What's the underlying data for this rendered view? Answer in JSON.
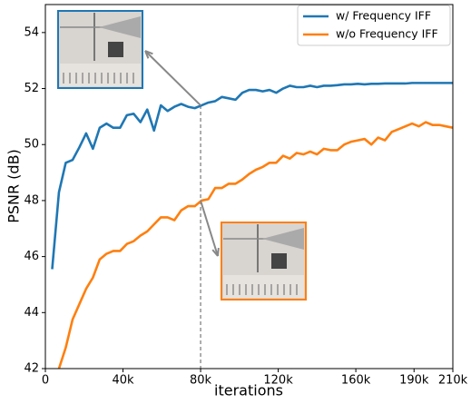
{
  "chart_data": {
    "type": "line",
    "xlabel": "iterations",
    "ylabel": "PSNR (dB)",
    "x": [
      3500,
      7000,
      10500,
      14000,
      17500,
      21000,
      24500,
      28000,
      31500,
      35000,
      38500,
      42000,
      45500,
      49000,
      52500,
      56000,
      59500,
      63000,
      66500,
      70000,
      73500,
      77000,
      80500,
      84000,
      87500,
      91000,
      94500,
      98000,
      101500,
      105000,
      108500,
      112000,
      115500,
      119000,
      122500,
      126000,
      129500,
      133000,
      136500,
      140000,
      143500,
      147000,
      150500,
      154000,
      157500,
      161000,
      164500,
      168000,
      171500,
      175000,
      178500,
      182000,
      185500,
      189000,
      192500,
      196000,
      199500,
      203000,
      206500,
      210000
    ],
    "series": [
      {
        "name": "w/ Frequency IFF",
        "color": "#1f77b4",
        "values": [
          45.55,
          48.3,
          49.35,
          49.45,
          49.9,
          50.4,
          49.85,
          50.6,
          50.75,
          50.6,
          50.6,
          51.05,
          51.1,
          50.8,
          51.25,
          50.5,
          51.4,
          51.2,
          51.35,
          51.45,
          51.35,
          51.3,
          51.4,
          51.5,
          51.55,
          51.7,
          51.65,
          51.6,
          51.85,
          51.95,
          51.95,
          51.9,
          51.95,
          51.85,
          52.0,
          52.1,
          52.05,
          52.05,
          52.1,
          52.05,
          52.1,
          52.1,
          52.12,
          52.15,
          52.15,
          52.17,
          52.15,
          52.17,
          52.17,
          52.18,
          52.18,
          52.18,
          52.18,
          52.2,
          52.2,
          52.2,
          52.2,
          52.2,
          52.2,
          52.2
        ]
      },
      {
        "name": "w/o Frequency IFF",
        "color": "#ff7f0e",
        "values": [
          null,
          42.0,
          42.75,
          43.75,
          44.3,
          44.85,
          45.25,
          45.9,
          46.1,
          46.2,
          46.2,
          46.45,
          46.55,
          46.75,
          46.9,
          47.15,
          47.4,
          47.4,
          47.3,
          47.65,
          47.8,
          47.8,
          48.0,
          48.05,
          48.45,
          48.45,
          48.6,
          48.6,
          48.75,
          48.95,
          49.1,
          49.2,
          49.35,
          49.35,
          49.6,
          49.5,
          49.7,
          49.65,
          49.75,
          49.65,
          49.85,
          49.8,
          49.8,
          50.0,
          50.1,
          50.15,
          50.2,
          50.0,
          50.25,
          50.15,
          50.45,
          50.55,
          50.65,
          50.75,
          50.65,
          50.8,
          50.7,
          50.7,
          50.65,
          50.6
        ]
      }
    ],
    "xlim": [
      0,
      210000
    ],
    "xticks": [
      0,
      {
        "value": 40000,
        "label": "40k"
      },
      {
        "value": 80000,
        "label": "80k"
      },
      {
        "value": 120000,
        "label": "120k"
      },
      {
        "value": 160000,
        "label": "160k"
      },
      {
        "value": 190000,
        "label": "190k"
      },
      {
        "value": 210000,
        "label": "210k"
      }
    ],
    "ylim": [
      42,
      55
    ],
    "yticks": [
      42,
      44,
      46,
      48,
      50,
      52,
      54
    ],
    "marker_x": 80000,
    "legend": "upper right"
  }
}
